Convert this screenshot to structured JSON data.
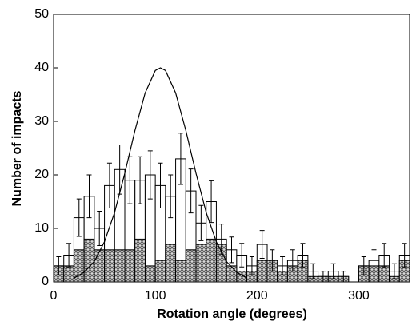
{
  "chart_data": {
    "type": "histogram",
    "xlabel": "Rotation angle (degrees)",
    "ylabel": "Number of impacts",
    "bins": [
      0,
      10,
      20,
      30,
      40,
      50,
      60,
      70,
      80,
      90,
      100,
      110,
      120,
      130,
      140,
      150,
      160,
      170,
      180,
      190,
      200,
      210,
      220,
      230,
      240,
      250,
      260,
      270,
      280,
      290,
      300,
      310,
      320,
      330,
      340,
      350
    ],
    "series": [
      {
        "color": "#ffffff",
        "values": [
          3,
          5,
          12,
          16,
          10,
          18,
          21,
          19,
          19,
          20,
          18,
          16,
          23,
          17,
          11,
          15,
          8,
          6,
          5,
          3,
          7,
          4,
          3,
          4,
          5,
          2,
          1,
          2,
          1,
          0,
          3,
          4,
          5,
          2,
          5
        ],
        "errors": [
          1.7,
          2.2,
          3.5,
          4,
          3.2,
          4.2,
          4.6,
          4.4,
          4.4,
          4.5,
          4.2,
          4,
          4.8,
          4.1,
          3.3,
          3.9,
          2.8,
          2.4,
          2.2,
          1.7,
          2.6,
          2,
          1.7,
          2,
          2.2,
          1.4,
          1,
          1.4,
          1,
          0,
          1.7,
          2,
          2.2,
          1.4,
          2.2
        ]
      },
      {
        "color": "#555555",
        "hatch": true,
        "values": [
          3,
          3,
          6,
          8,
          6,
          6,
          6,
          6,
          8,
          3,
          4,
          7,
          4,
          6,
          7,
          8,
          7,
          3,
          2,
          2,
          4,
          4,
          2,
          3,
          4,
          1,
          1,
          1,
          1,
          0,
          3,
          3,
          3,
          1,
          4
        ]
      }
    ],
    "curve": {
      "color": "#000000",
      "x": [
        20,
        30,
        40,
        50,
        60,
        70,
        80,
        90,
        100,
        105,
        110,
        120,
        130,
        140,
        150,
        160,
        170,
        180,
        190
      ],
      "values": [
        0.7,
        1.8,
        3.8,
        7.5,
        13,
        20.3,
        28.3,
        35.3,
        39.5,
        40,
        39.5,
        35.3,
        28.3,
        20.3,
        13,
        7.5,
        3.8,
        1.8,
        0.7
      ]
    },
    "xlim": [
      0,
      350
    ],
    "ylim": [
      0,
      50
    ],
    "xticks": [
      0,
      100,
      200,
      300
    ],
    "yticks": [
      0,
      10,
      20,
      30,
      40,
      50
    ]
  }
}
